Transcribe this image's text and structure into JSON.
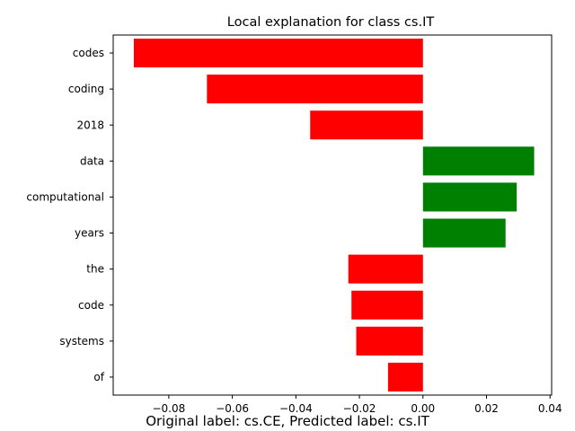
{
  "chart_data": {
    "type": "bar",
    "orientation": "horizontal",
    "title": "Local explanation for class cs.IT",
    "caption": "Original label: cs.CE, Predicted label: cs.IT",
    "categories": [
      "codes",
      "coding",
      "2018",
      "data",
      "computational",
      "years",
      "the",
      "code",
      "systems",
      "of"
    ],
    "values": [
      -0.091,
      -0.068,
      -0.0355,
      0.035,
      0.0295,
      0.026,
      -0.0235,
      -0.0225,
      -0.021,
      -0.011
    ],
    "xlim": [
      -0.0975,
      0.0405
    ],
    "xticks": [
      -0.08,
      -0.06,
      -0.04,
      -0.02,
      0.0,
      0.02,
      0.04
    ],
    "xtick_labels": [
      "−0.08",
      "−0.06",
      "−0.04",
      "−0.02",
      "0.00",
      "0.02",
      "0.04"
    ],
    "colors": {
      "positive": "#008000",
      "negative": "#ff0000"
    },
    "grid": false
  }
}
